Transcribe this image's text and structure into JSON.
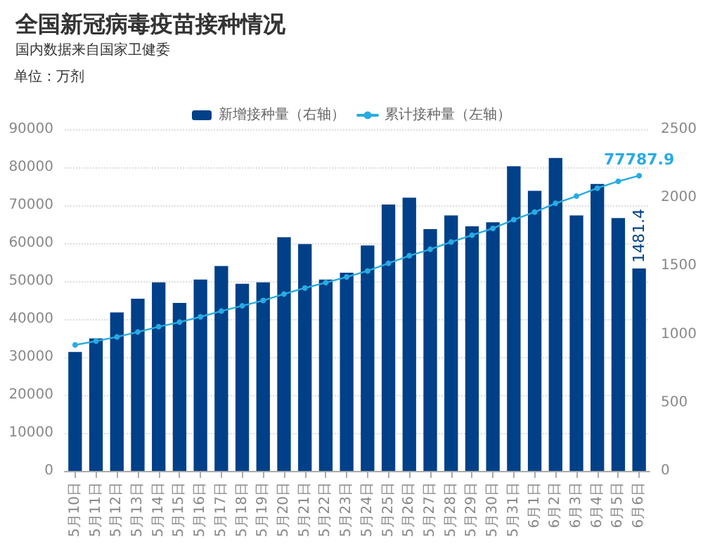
{
  "chart_data": {
    "type": "bar",
    "title": "全国新冠病毒疫苗接种情况",
    "subtitle": "国内数据来自国家卫健委",
    "annotations": [
      "单位：万剂"
    ],
    "categories": [
      "5月10日",
      "5月11日",
      "5月12日",
      "5月13日",
      "5月14日",
      "5月15日",
      "5月16日",
      "5月17日",
      "5月18日",
      "5月19日",
      "5月20日",
      "5月21日",
      "5月22日",
      "5月23日",
      "5月24日",
      "5月25日",
      "5月26日",
      "5月27日",
      "5月28日",
      "5月29日",
      "5月30日",
      "5月31日",
      "6月1日",
      "6月2日",
      "6月3日",
      "6月4日",
      "6月5日",
      "6月6日"
    ],
    "series": [
      {
        "name": "新增接种量（右轴）",
        "axis": "y2",
        "color": "#004088",
        "values": [
          870,
          970,
          1160,
          1260,
          1380,
          1230,
          1400,
          1500,
          1370,
          1380,
          1710,
          1660,
          1400,
          1450,
          1650,
          1950,
          2000,
          1770,
          1870,
          1790,
          1820,
          2230,
          2050,
          2290,
          1870,
          2100,
          1850,
          1481.4
        ],
        "value_labels": [
          null,
          null,
          null,
          null,
          null,
          null,
          null,
          null,
          null,
          null,
          null,
          null,
          null,
          null,
          null,
          null,
          null,
          null,
          null,
          null,
          null,
          null,
          null,
          null,
          null,
          null,
          null,
          "1481.4"
        ]
      },
      {
        "name": "累计接种量（左轴）",
        "type": "line",
        "color": "#29abe2",
        "marker": "circle",
        "values": [
          33200,
          34200,
          35300,
          36600,
          38000,
          39200,
          40600,
          42100,
          43500,
          44900,
          46600,
          48200,
          49600,
          51100,
          52700,
          54700,
          56700,
          58400,
          60300,
          62100,
          63900,
          66200,
          68200,
          70500,
          72400,
          74500,
          76300,
          77787.9
        ],
        "value_labels": [
          null,
          null,
          null,
          null,
          null,
          null,
          null,
          null,
          null,
          null,
          null,
          null,
          null,
          null,
          null,
          null,
          null,
          null,
          null,
          null,
          null,
          null,
          null,
          null,
          null,
          null,
          null,
          "77787.9"
        ]
      }
    ],
    "ylim": [
      0,
      90000
    ],
    "yticks": [
      0,
      10000,
      20000,
      30000,
      40000,
      50000,
      60000,
      70000,
      80000,
      90000
    ],
    "y2lim": [
      0,
      2500
    ],
    "y2ticks": [
      0,
      500,
      1000,
      1500,
      2000,
      2500
    ],
    "grid": "y",
    "legend": "top"
  }
}
